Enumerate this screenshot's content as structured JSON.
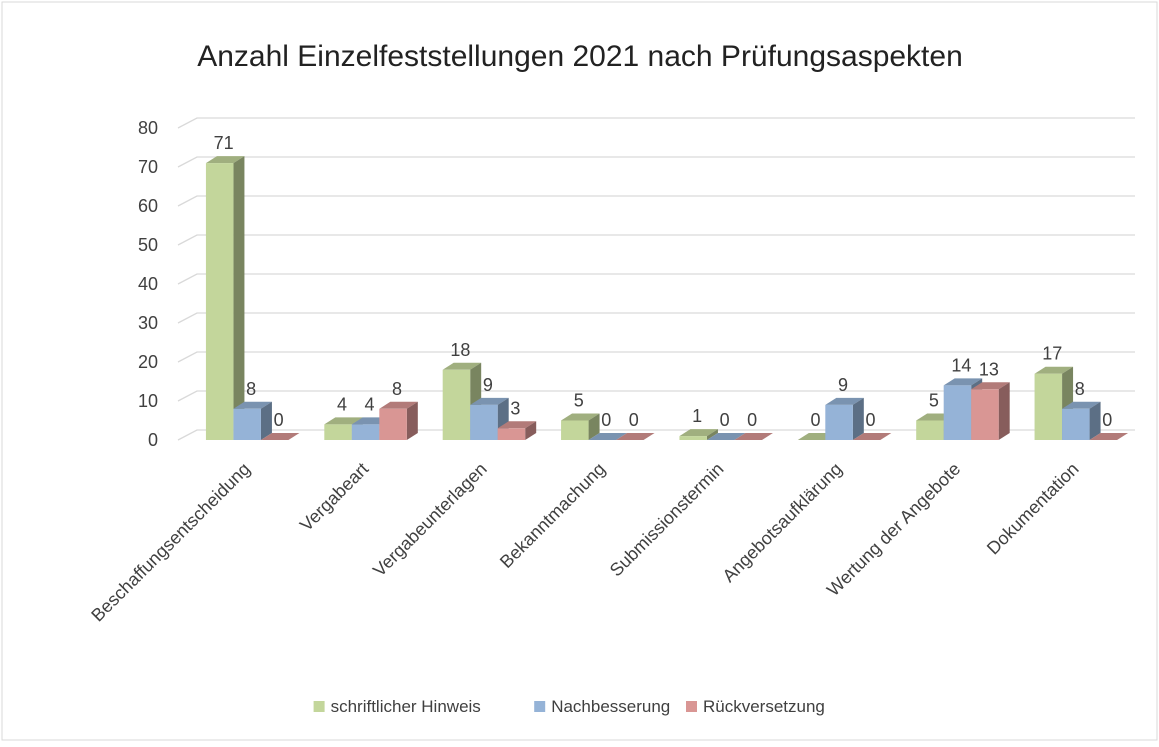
{
  "chart_data": {
    "type": "bar3d",
    "title": "Anzahl Einzelfeststellungen 2021 nach Prüfungsaspekten",
    "categories": [
      "Beschaffungsentscheidung",
      "Vergabeart",
      "Vergabeunterlagen",
      "Bekanntmachung",
      "Submissionstermin",
      "Angebotsaufklärung",
      "Wertung der Angebote",
      "Dokumentation"
    ],
    "series": [
      {
        "name": "schriftlicher Hinweis",
        "color": "#c3d69b",
        "values": [
          71,
          4,
          18,
          5,
          1,
          0,
          5,
          17
        ]
      },
      {
        "name": "Nachbesserung",
        "color": "#95b3d7",
        "values": [
          8,
          4,
          9,
          0,
          0,
          9,
          14,
          8
        ]
      },
      {
        "name": "Rückversetzung",
        "color": "#d99694",
        "values": [
          0,
          8,
          3,
          0,
          0,
          0,
          13,
          0
        ]
      }
    ],
    "ylim": [
      0,
      80
    ],
    "yticks": [
      0,
      10,
      20,
      30,
      40,
      50,
      60,
      70,
      80
    ],
    "grid": true,
    "legend": "bottom"
  }
}
